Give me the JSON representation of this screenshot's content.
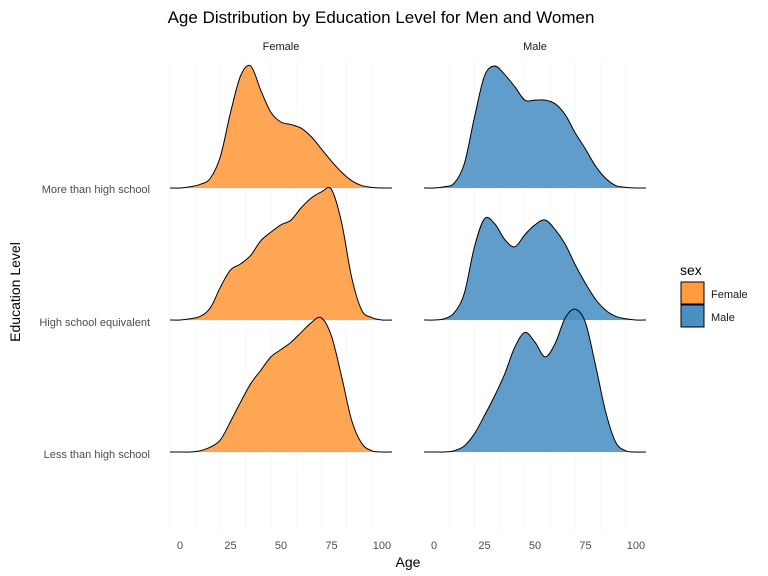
{
  "chart_data": {
    "type": "ridgeline",
    "title": "Age Distribution by Education Level for Men and Women",
    "xlabel": "Age",
    "ylabel": "Education Level",
    "xlim": [
      -5,
      105
    ],
    "x_ticks": [
      0,
      25,
      50,
      75,
      100
    ],
    "grid": true,
    "panels": [
      "Female",
      "Male"
    ],
    "categories": [
      "More than high school",
      "High school equivalent",
      "Less than high school"
    ],
    "legend": {
      "title": "sex",
      "placement": "right",
      "entries": [
        {
          "label": "Female",
          "color": "#ff9a3d"
        },
        {
          "label": "Male",
          "color": "#4b90c3"
        }
      ]
    },
    "x_grid": [
      -5,
      0,
      5,
      10,
      15,
      20,
      25,
      30,
      35,
      40,
      45,
      50,
      55,
      60,
      65,
      70,
      75,
      80,
      85,
      90,
      95,
      100,
      105
    ],
    "series": [
      {
        "panel": "Female",
        "category": "More than high school",
        "density": [
          0,
          0,
          0.01,
          0.03,
          0.08,
          0.26,
          0.62,
          0.92,
          1.0,
          0.8,
          0.62,
          0.54,
          0.52,
          0.49,
          0.42,
          0.32,
          0.22,
          0.13,
          0.06,
          0.02,
          0.005,
          0,
          0
        ]
      },
      {
        "panel": "Female",
        "category": "High school equivalent",
        "density": [
          0,
          0,
          0.01,
          0.03,
          0.1,
          0.27,
          0.41,
          0.46,
          0.53,
          0.65,
          0.72,
          0.78,
          0.82,
          0.92,
          1.0,
          1.05,
          1.07,
          0.8,
          0.35,
          0.08,
          0.02,
          0,
          0
        ]
      },
      {
        "panel": "Female",
        "category": "Less than high school",
        "density": [
          0,
          0,
          0,
          0.01,
          0.04,
          0.1,
          0.25,
          0.41,
          0.56,
          0.67,
          0.78,
          0.84,
          0.9,
          0.98,
          1.06,
          1.1,
          0.95,
          0.62,
          0.26,
          0.07,
          0.01,
          0,
          0
        ]
      },
      {
        "panel": "Male",
        "category": "More than high school",
        "density": [
          0,
          0,
          0.01,
          0.04,
          0.2,
          0.58,
          0.92,
          1.0,
          0.93,
          0.83,
          0.72,
          0.72,
          0.72,
          0.69,
          0.6,
          0.45,
          0.32,
          0.18,
          0.08,
          0.02,
          0.005,
          0,
          0
        ]
      },
      {
        "panel": "Male",
        "category": "High school equivalent",
        "density": [
          0,
          0,
          0.01,
          0.06,
          0.22,
          0.6,
          0.83,
          0.79,
          0.66,
          0.6,
          0.7,
          0.78,
          0.82,
          0.74,
          0.62,
          0.45,
          0.3,
          0.17,
          0.08,
          0.03,
          0.01,
          0,
          0
        ]
      },
      {
        "panel": "Male",
        "category": "Less than high school",
        "density": [
          0,
          0,
          0,
          0.01,
          0.05,
          0.15,
          0.3,
          0.46,
          0.64,
          0.86,
          0.98,
          0.9,
          0.78,
          0.89,
          1.1,
          1.17,
          1.06,
          0.71,
          0.33,
          0.08,
          0.01,
          0,
          0
        ]
      }
    ]
  }
}
